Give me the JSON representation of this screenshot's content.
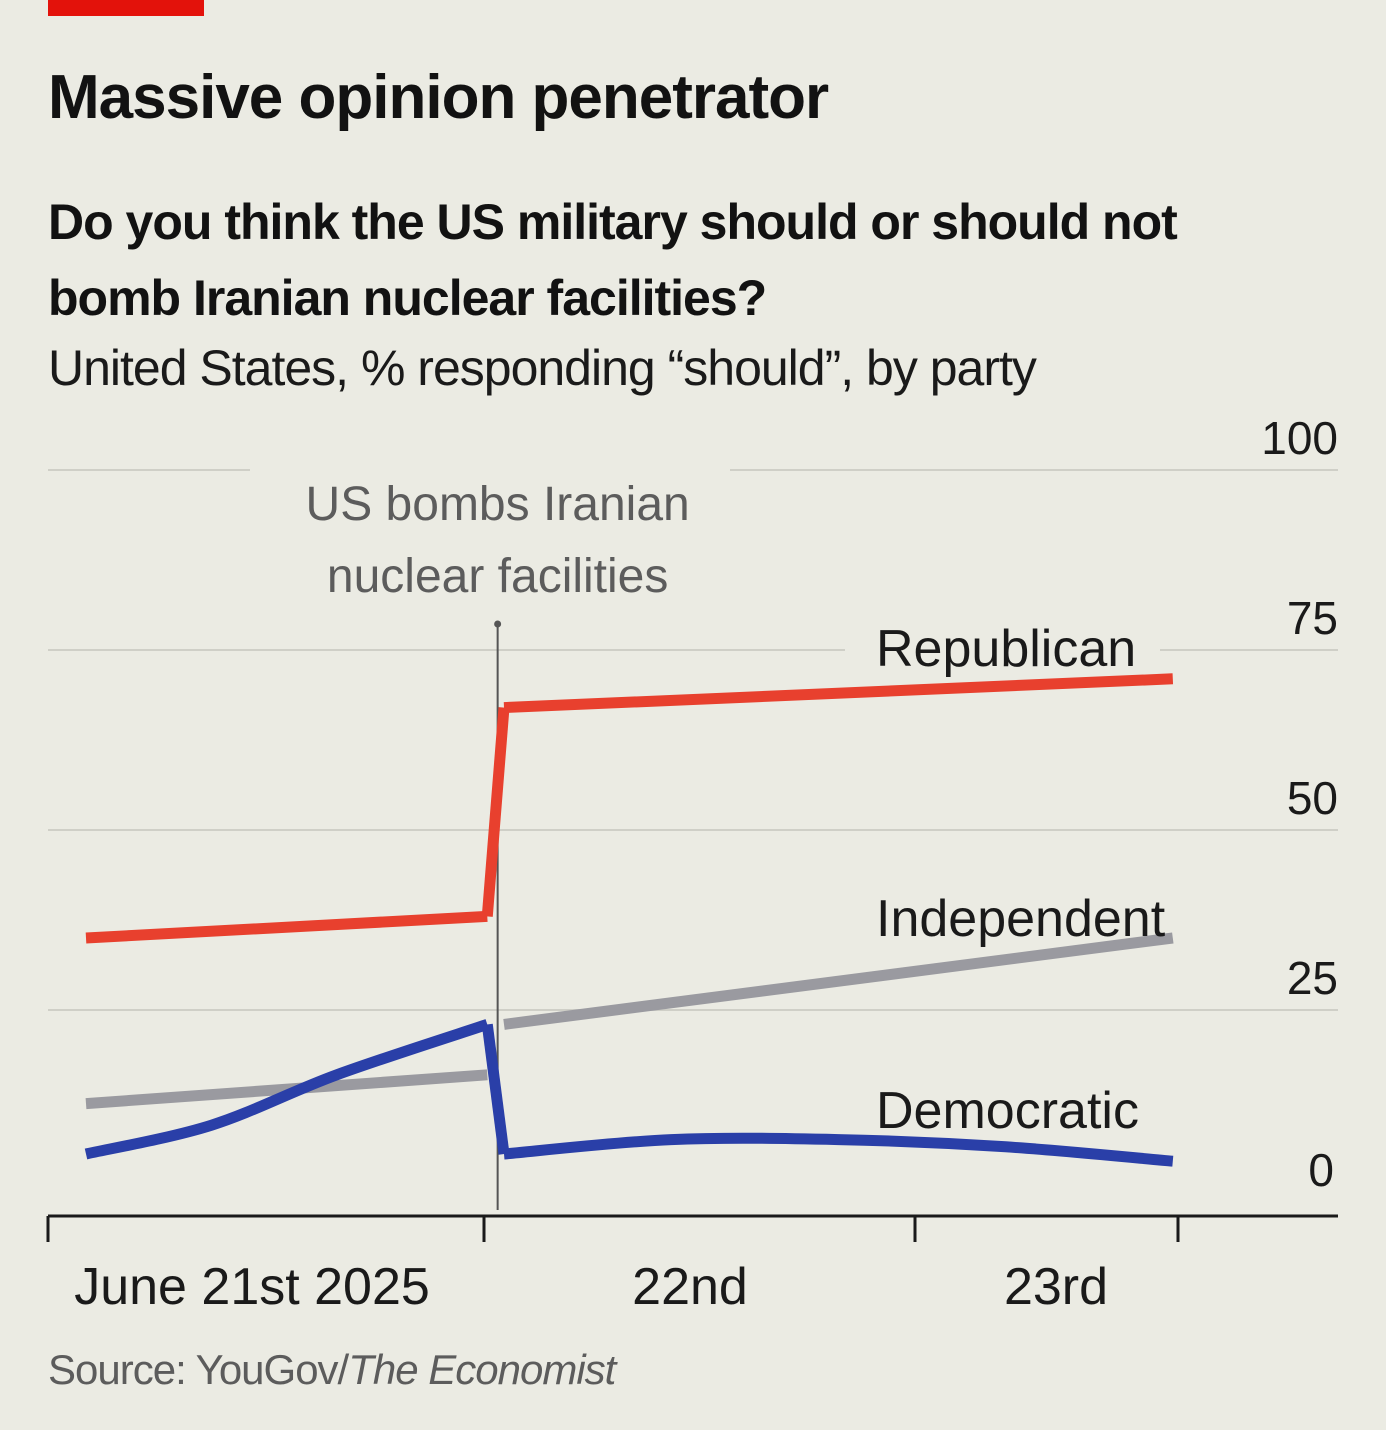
{
  "header": {
    "title": "Massive opinion penetrator",
    "subtitle": "Do you think the US military should or should not bomb Iranian nuclear facilities?",
    "description": "United States, % responding “should”, by party"
  },
  "footer": {
    "source_prefix": "Source: YouGov/",
    "source_publication": "The Economist"
  },
  "colors": {
    "background": "#ebebe3",
    "gridline": "#cfcfc7",
    "axis": "#1a1a1a",
    "republican": "#e8402e",
    "independent": "#9a9aa0",
    "democratic": "#2a3fa8",
    "brand_red": "#e3120b"
  },
  "chart_data": {
    "type": "line",
    "y_ticks": [
      0,
      25,
      50,
      75,
      100
    ],
    "ylim": [
      0,
      100
    ],
    "x_labels": [
      "June 21st 2025",
      "22nd",
      "23rd"
    ],
    "annotation": {
      "text_lines": [
        "US bombs Iranian",
        "nuclear facilities"
      ],
      "at": "June 21st 2025 evening"
    },
    "series": [
      {
        "name": "Republican",
        "color_key": "republican",
        "segments": [
          {
            "points": [
              [
                0.0,
                35
              ],
              [
                0.96,
                38
              ]
            ]
          },
          {
            "points": [
              [
                0.96,
                38
              ],
              [
                1.0,
                67
              ]
            ]
          },
          {
            "points": [
              [
                1.0,
                67
              ],
              [
                2.6,
                71
              ]
            ]
          }
        ]
      },
      {
        "name": "Independent",
        "color_key": "independent",
        "segments": [
          {
            "points": [
              [
                0.0,
                12
              ],
              [
                0.96,
                16
              ]
            ]
          },
          {
            "points": [
              [
                1.0,
                23
              ],
              [
                2.6,
                35
              ]
            ]
          }
        ]
      },
      {
        "name": "Democratic",
        "color_key": "democratic",
        "curve": true,
        "segments": [
          {
            "points": [
              [
                0.0,
                5
              ],
              [
                0.3,
                9
              ],
              [
                0.6,
                16
              ],
              [
                0.96,
                23
              ]
            ]
          },
          {
            "points": [
              [
                0.96,
                23
              ],
              [
                1.0,
                5
              ]
            ]
          },
          {
            "points": [
              [
                1.0,
                5
              ],
              [
                1.4,
                7
              ],
              [
                1.8,
                7
              ],
              [
                2.2,
                6
              ],
              [
                2.6,
                4
              ]
            ]
          }
        ]
      }
    ]
  }
}
